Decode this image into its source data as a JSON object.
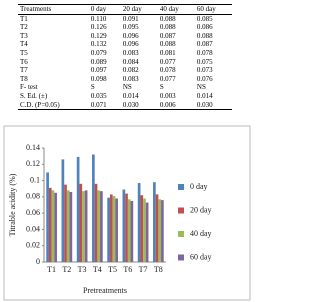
{
  "table": {
    "header": [
      "Treatments",
      "0 day",
      "20 day",
      "40 day",
      "60 day"
    ],
    "rows": [
      [
        "T1",
        "0.110",
        "0.091",
        "0.088",
        "0.085"
      ],
      [
        "T2",
        "0.126",
        "0.095",
        "0.088",
        "0.086"
      ],
      [
        "T3",
        "0.129",
        "0.096",
        "0.087",
        "0.088"
      ],
      [
        "T4",
        "0.132",
        "0.096",
        "0.088",
        "0.087"
      ],
      [
        "T5",
        "0.079",
        "0.083",
        "0.081",
        "0.078"
      ],
      [
        "T6",
        "0.089",
        "0.084",
        "0.077",
        "0.075"
      ],
      [
        "T7",
        "0.097",
        "0.082",
        "0.078",
        "0.073"
      ],
      [
        "T8",
        "0.098",
        "0.083",
        "0.077",
        "0.076"
      ],
      [
        "F- test",
        "S",
        "NS",
        "S",
        "NS"
      ],
      [
        "S. Ed. (±)",
        "0.035",
        "0.014",
        "0.003",
        "0.014"
      ],
      [
        "C.D. (P=0.05)",
        "0.071",
        "0.030",
        "0.006",
        "0.030"
      ]
    ]
  },
  "chart_data": {
    "type": "bar",
    "x_label": "Pretreatments",
    "y_label": "Titrable acidity (%)",
    "categories": [
      "T1",
      "T2",
      "T3",
      "T4",
      "T5",
      "T6",
      "T7",
      "T8"
    ],
    "series": [
      {
        "name": "0 day",
        "color": "#4f81bd",
        "values": [
          0.11,
          0.126,
          0.129,
          0.132,
          0.079,
          0.089,
          0.097,
          0.098
        ]
      },
      {
        "name": "20 day",
        "color": "#c0504d",
        "values": [
          0.091,
          0.095,
          0.096,
          0.096,
          0.083,
          0.084,
          0.082,
          0.083
        ]
      },
      {
        "name": "40 day",
        "color": "#9bbb59",
        "values": [
          0.088,
          0.088,
          0.087,
          0.088,
          0.081,
          0.077,
          0.078,
          0.077
        ]
      },
      {
        "name": "60 day",
        "color": "#8064a2",
        "values": [
          0.085,
          0.086,
          0.088,
          0.087,
          0.078,
          0.075,
          0.073,
          0.076
        ]
      }
    ],
    "ylim": [
      0,
      0.14
    ],
    "yticks": [
      0,
      0.02,
      0.04,
      0.06,
      0.08,
      0.1,
      0.12,
      0.14
    ],
    "legend": "right"
  }
}
